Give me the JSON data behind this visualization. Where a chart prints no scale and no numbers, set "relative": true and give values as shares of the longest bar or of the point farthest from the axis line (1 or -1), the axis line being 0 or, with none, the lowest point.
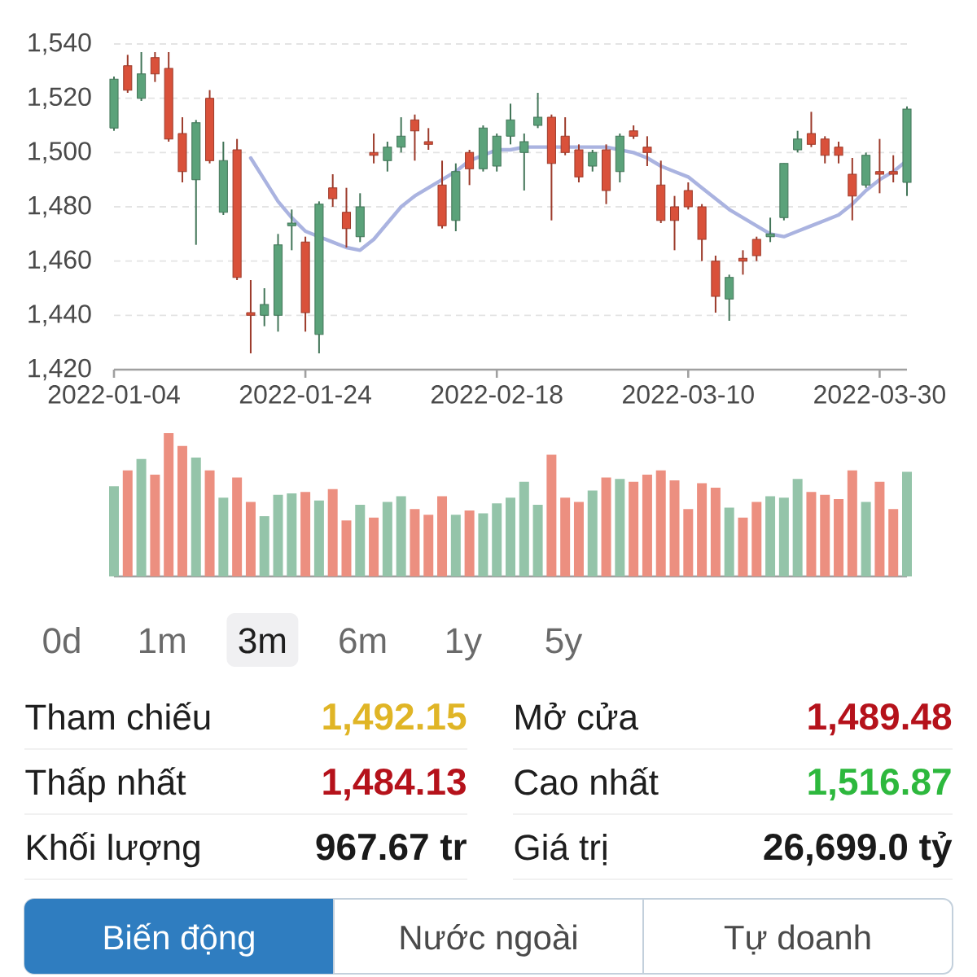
{
  "chart_data": [
    {
      "type": "candlestick",
      "categories": [
        "2022-01-04",
        null,
        null,
        null,
        null,
        null,
        null,
        null,
        null,
        null,
        null,
        null,
        null,
        null,
        "2022-01-24",
        null,
        null,
        null,
        null,
        null,
        null,
        null,
        null,
        null,
        null,
        null,
        null,
        null,
        "2022-02-18",
        null,
        null,
        null,
        null,
        null,
        null,
        null,
        null,
        null,
        null,
        null,
        null,
        null,
        "2022-03-10",
        null,
        null,
        null,
        null,
        null,
        null,
        null,
        null,
        null,
        null,
        null,
        null,
        null,
        "2022-03-30",
        null,
        null
      ],
      "ohlc": [
        [
          1509,
          1528,
          1508,
          1527
        ],
        [
          1532,
          1536,
          1522,
          1523
        ],
        [
          1520,
          1537,
          1519,
          1529
        ],
        [
          1535,
          1537,
          1526,
          1529
        ],
        [
          1531,
          1537,
          1504,
          1505
        ],
        [
          1507,
          1513,
          1489,
          1493
        ],
        [
          1490,
          1512,
          1466,
          1511
        ],
        [
          1520,
          1523,
          1496,
          1497
        ],
        [
          1478,
          1504,
          1477,
          1497
        ],
        [
          1501,
          1505,
          1453,
          1454
        ],
        [
          1441,
          1453,
          1426,
          1440
        ],
        [
          1440,
          1450,
          1436,
          1444
        ],
        [
          1440,
          1470,
          1434,
          1466
        ],
        [
          1473,
          1479,
          1464,
          1474
        ],
        [
          1467,
          1469,
          1434,
          1441
        ],
        [
          1433,
          1482,
          1426,
          1481
        ],
        [
          1487,
          1492,
          1480,
          1483
        ],
        [
          1478,
          1487,
          1465,
          1472
        ],
        [
          1469,
          1485,
          1467,
          1480
        ],
        [
          1500,
          1507,
          1496,
          1499
        ],
        [
          1497,
          1504,
          1493,
          1502
        ],
        [
          1502,
          1513,
          1500,
          1506
        ],
        [
          1512,
          1514,
          1497,
          1508
        ],
        [
          1504,
          1509,
          1501,
          1503
        ],
        [
          1488,
          1497,
          1472,
          1473
        ],
        [
          1475,
          1496,
          1471,
          1493
        ],
        [
          1500,
          1501,
          1488,
          1494
        ],
        [
          1494,
          1510,
          1493,
          1509
        ],
        [
          1495,
          1507,
          1493,
          1506
        ],
        [
          1506,
          1518,
          1503,
          1512
        ],
        [
          1500,
          1507,
          1486,
          1504
        ],
        [
          1510,
          1522,
          1509,
          1513
        ],
        [
          1513,
          1514,
          1475,
          1496
        ],
        [
          1506,
          1513,
          1499,
          1500
        ],
        [
          1501,
          1503,
          1489,
          1491
        ],
        [
          1495,
          1501,
          1493,
          1500
        ],
        [
          1501,
          1503,
          1481,
          1486
        ],
        [
          1493,
          1507,
          1489,
          1506
        ],
        [
          1508,
          1510,
          1505,
          1506
        ],
        [
          1502,
          1506,
          1495,
          1500
        ],
        [
          1488,
          1497,
          1474,
          1475
        ],
        [
          1480,
          1484,
          1464,
          1475
        ],
        [
          1486,
          1489,
          1479,
          1480
        ],
        [
          1480,
          1481,
          1460,
          1468
        ],
        [
          1460,
          1462,
          1441,
          1447
        ],
        [
          1446,
          1455,
          1438,
          1454
        ],
        [
          1461,
          1464,
          1455,
          1460
        ],
        [
          1468,
          1469,
          1460,
          1462
        ],
        [
          1469,
          1476,
          1467,
          1470
        ],
        [
          1476,
          1496,
          1475,
          1496
        ],
        [
          1501,
          1508,
          1500,
          1505
        ],
        [
          1507,
          1515,
          1502,
          1503
        ],
        [
          1505,
          1506,
          1496,
          1499
        ],
        [
          1502,
          1504,
          1496,
          1499
        ],
        [
          1492,
          1498,
          1475,
          1484
        ],
        [
          1488,
          1500,
          1487,
          1499
        ],
        [
          1493,
          1505,
          1485,
          1492
        ],
        [
          1493,
          1499,
          1489,
          1492
        ],
        [
          1489,
          1517,
          1484,
          1516
        ]
      ],
      "colors": [
        "#5ba27a",
        "#d9513a",
        "#5ba27a",
        "#d9513a",
        "#d9513a",
        "#d9513a",
        "#5ba27a",
        "#d9513a",
        "#5ba27a",
        "#d9513a",
        "#d9513a",
        "#5ba27a",
        "#5ba27a",
        "#5ba27a",
        "#d9513a",
        "#5ba27a",
        "#d9513a",
        "#d9513a",
        "#5ba27a",
        "#d9513a",
        "#5ba27a",
        "#5ba27a",
        "#d9513a",
        "#d9513a",
        "#d9513a",
        "#5ba27a",
        "#d9513a",
        "#5ba27a",
        "#5ba27a",
        "#5ba27a",
        "#5ba27a",
        "#5ba27a",
        "#d9513a",
        "#d9513a",
        "#d9513a",
        "#5ba27a",
        "#d9513a",
        "#5ba27a",
        "#d9513a",
        "#d9513a",
        "#d9513a",
        "#d9513a",
        "#d9513a",
        "#d9513a",
        "#d9513a",
        "#5ba27a",
        "#d9513a",
        "#d9513a",
        "#5ba27a",
        "#5ba27a",
        "#5ba27a",
        "#d9513a",
        "#d9513a",
        "#d9513a",
        "#d9513a",
        "#5ba27a",
        "#d9513a",
        "#d9513a",
        "#5ba27a"
      ],
      "ylim": [
        1420,
        1540
      ],
      "yticks": [
        {
          "value": 1420,
          "label": "1,420"
        },
        {
          "value": 1440,
          "label": "1,440"
        },
        {
          "value": 1460,
          "label": "1,460"
        },
        {
          "value": 1480,
          "label": "1,480"
        },
        {
          "value": 1500,
          "label": "1,500"
        },
        {
          "value": 1520,
          "label": "1,520"
        },
        {
          "value": 1540,
          "label": "1,540"
        }
      ],
      "grid": "y",
      "series": [
        {
          "type": "line",
          "color": "#aab3e0",
          "values": [
            null,
            null,
            null,
            null,
            null,
            null,
            null,
            null,
            null,
            null,
            1498,
            1490,
            1482,
            1476,
            1471,
            1469,
            1467,
            1465,
            1464,
            1468,
            1474,
            1480,
            1484,
            1487,
            1490,
            1493,
            1497,
            1499,
            1501,
            1501,
            1502,
            1502,
            1502,
            1502,
            1502,
            1502,
            1502,
            1501,
            1500,
            1498,
            1495,
            1493,
            1491,
            1487,
            1483,
            1479,
            1476,
            1473,
            1470,
            1469,
            1471,
            1473,
            1475,
            1477,
            1481,
            1486,
            1490,
            1493,
            1497
          ]
        }
      ]
    },
    {
      "type": "bar",
      "relative": true,
      "categories": [
        null,
        null,
        null,
        null,
        null,
        null,
        null,
        null,
        null,
        null,
        null,
        null,
        null,
        null,
        null,
        null,
        null,
        null,
        null,
        null,
        null,
        null,
        null,
        null,
        null,
        null,
        null,
        null,
        null,
        null,
        null,
        null,
        null,
        null,
        null,
        null,
        null,
        null,
        null,
        null,
        null,
        null,
        null,
        null,
        null,
        null,
        null,
        null,
        null,
        null,
        null,
        null,
        null,
        null,
        null,
        null,
        null,
        null,
        null
      ],
      "values": [
        0.63,
        0.74,
        0.82,
        0.71,
        1,
        0.91,
        0.83,
        0.74,
        0.55,
        0.69,
        0.52,
        0.42,
        0.57,
        0.58,
        0.59,
        0.53,
        0.61,
        0.39,
        0.5,
        0.41,
        0.52,
        0.56,
        0.47,
        0.43,
        0.56,
        0.43,
        0.46,
        0.44,
        0.51,
        0.55,
        0.66,
        0.5,
        0.85,
        0.55,
        0.52,
        0.6,
        0.69,
        0.68,
        0.66,
        0.71,
        0.74,
        0.67,
        0.47,
        0.65,
        0.62,
        0.48,
        0.41,
        0.52,
        0.56,
        0.55,
        0.68,
        0.59,
        0.57,
        0.54,
        0.74,
        0.52,
        0.66,
        0.47,
        0.73
      ],
      "colors": [
        "#94c4a9",
        "#ec8f80",
        "#94c4a9",
        "#ec8f80",
        "#ec8f80",
        "#ec8f80",
        "#94c4a9",
        "#ec8f80",
        "#94c4a9",
        "#ec8f80",
        "#ec8f80",
        "#94c4a9",
        "#94c4a9",
        "#94c4a9",
        "#ec8f80",
        "#94c4a9",
        "#ec8f80",
        "#ec8f80",
        "#94c4a9",
        "#ec8f80",
        "#94c4a9",
        "#94c4a9",
        "#ec8f80",
        "#ec8f80",
        "#ec8f80",
        "#94c4a9",
        "#ec8f80",
        "#94c4a9",
        "#94c4a9",
        "#94c4a9",
        "#94c4a9",
        "#94c4a9",
        "#ec8f80",
        "#ec8f80",
        "#ec8f80",
        "#94c4a9",
        "#ec8f80",
        "#94c4a9",
        "#ec8f80",
        "#ec8f80",
        "#ec8f80",
        "#ec8f80",
        "#ec8f80",
        "#ec8f80",
        "#ec8f80",
        "#94c4a9",
        "#ec8f80",
        "#ec8f80",
        "#94c4a9",
        "#94c4a9",
        "#94c4a9",
        "#ec8f80",
        "#ec8f80",
        "#ec8f80",
        "#ec8f80",
        "#94c4a9",
        "#ec8f80",
        "#ec8f80",
        "#94c4a9"
      ]
    },
    {
      "type": "other",
      "categories": [
        "0d",
        "1m",
        "3m",
        "6m",
        "1y",
        "5y"
      ]
    },
    {
      "type": "other",
      "categories": [
        "Tham chiếu",
        "Mở cửa",
        "Thấp nhất",
        "Cao nhất",
        "Khối lượng",
        "Giá trị"
      ],
      "value_labels": [
        "1,492.15",
        "1,489.48",
        "1,484.13",
        "1,516.87",
        "967.67 tr",
        "26,699.0 tỷ"
      ],
      "colors": [
        "#e0b526",
        "#b5121b",
        "#b5121b",
        "#2db83d",
        "#1a1a1a",
        "#1a1a1a"
      ]
    },
    {
      "type": "other",
      "categories": [
        "Biến động",
        "Nước ngoài",
        "Tự doanh"
      ]
    }
  ]
}
